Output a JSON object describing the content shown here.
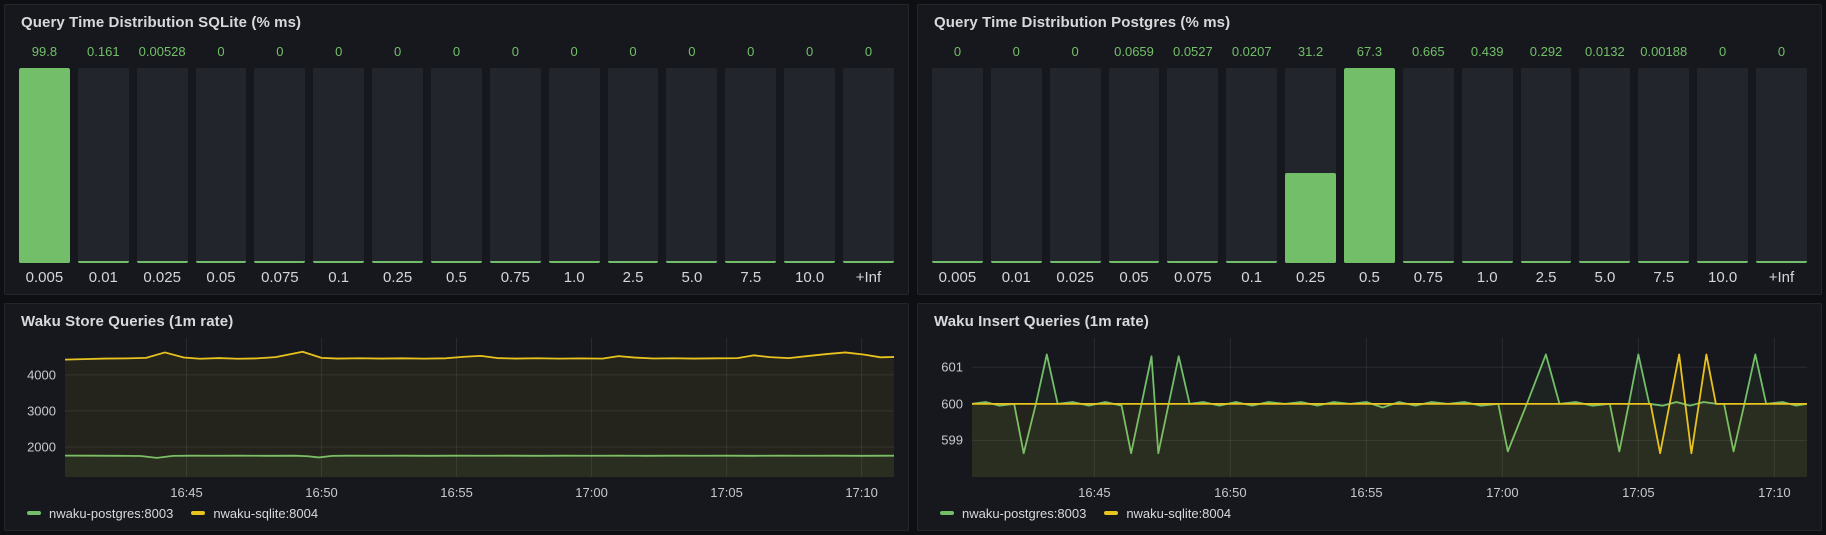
{
  "theme": {
    "green": "#73bf69",
    "yellow": "#e8c21f",
    "grid_color": "rgba(204,204,220,0.11)",
    "panel_bg": "#16181d",
    "unlit_bar": "#22252b"
  },
  "chart_data": {
    "histograms": [
      {
        "type": "bar",
        "title": "Query Time Distribution SQLite (% ms)",
        "categories": [
          "0.005",
          "0.01",
          "0.025",
          "0.05",
          "0.075",
          "0.1",
          "0.25",
          "0.5",
          "0.75",
          "1.0",
          "2.5",
          "5.0",
          "7.5",
          "10.0",
          "+Inf"
        ],
        "values": [
          99.8,
          0.161,
          0.00528,
          0,
          0,
          0,
          0,
          0,
          0,
          0,
          0,
          0,
          0,
          0,
          0
        ],
        "max": 99.8,
        "bar_color": "#73bf69"
      },
      {
        "type": "bar",
        "title": "Query Time Distribution Postgres (% ms)",
        "categories": [
          "0.005",
          "0.01",
          "0.025",
          "0.05",
          "0.075",
          "0.1",
          "0.25",
          "0.5",
          "0.75",
          "1.0",
          "2.5",
          "5.0",
          "7.5",
          "10.0",
          "+Inf"
        ],
        "values": [
          0,
          0,
          0,
          0.0659,
          0.0527,
          0.0207,
          31.2,
          67.3,
          0.665,
          0.439,
          0.292,
          0.0132,
          0.00188,
          0,
          0
        ],
        "max": 67.3,
        "bar_color": "#73bf69"
      }
    ],
    "charts": [
      {
        "type": "line",
        "title": "Waku Store Queries (1m rate)",
        "x_unit": "minutes after 16:40",
        "x_domain": [
          0.5,
          31.2
        ],
        "y_domain": [
          1170,
          5020
        ],
        "y_ticks": [
          {
            "v": 2000,
            "label": "2000"
          },
          {
            "v": 3000,
            "label": "3000"
          },
          {
            "v": 4000,
            "label": "4000"
          }
        ],
        "x_ticks": [
          {
            "t": 5,
            "label": "16:45"
          },
          {
            "t": 10,
            "label": "16:50"
          },
          {
            "t": 15,
            "label": "16:55"
          },
          {
            "t": 20,
            "label": "17:00"
          },
          {
            "t": 25,
            "label": "17:05"
          },
          {
            "t": 30,
            "label": "17:10"
          }
        ],
        "series": [
          {
            "name": "nwaku-postgres:8003",
            "color": "#73bf69",
            "fill_opacity": 0.07,
            "points": [
              [
                0.5,
                1762
              ],
              [
                1.5,
                1760
              ],
              [
                2.5,
                1757
              ],
              [
                3.3,
                1752
              ],
              [
                3.9,
                1700
              ],
              [
                4.5,
                1755
              ],
              [
                5.2,
                1760
              ],
              [
                6,
                1758
              ],
              [
                7,
                1760
              ],
              [
                8,
                1757
              ],
              [
                9,
                1760
              ],
              [
                9.5,
                1745
              ],
              [
                9.9,
                1712
              ],
              [
                10.4,
                1755
              ],
              [
                11,
                1760
              ],
              [
                12,
                1758
              ],
              [
                13,
                1760
              ],
              [
                14,
                1757
              ],
              [
                15,
                1760
              ],
              [
                16,
                1758
              ],
              [
                17,
                1760
              ],
              [
                18,
                1757
              ],
              [
                19,
                1760
              ],
              [
                20,
                1758
              ],
              [
                21,
                1760
              ],
              [
                22,
                1757
              ],
              [
                23,
                1760
              ],
              [
                24,
                1758
              ],
              [
                25,
                1760
              ],
              [
                26,
                1757
              ],
              [
                27,
                1760
              ],
              [
                28,
                1758
              ],
              [
                29,
                1760
              ],
              [
                30,
                1757
              ],
              [
                31.2,
                1760
              ]
            ]
          },
          {
            "name": "nwaku-sqlite:8004",
            "color": "#e8c21f",
            "fill_opacity": 0.07,
            "points": [
              [
                0.5,
                4420
              ],
              [
                1.2,
                4435
              ],
              [
                2,
                4450
              ],
              [
                2.8,
                4455
              ],
              [
                3.5,
                4470
              ],
              [
                4.2,
                4620
              ],
              [
                4.9,
                4480
              ],
              [
                5.5,
                4445
              ],
              [
                6.2,
                4465
              ],
              [
                6.9,
                4445
              ],
              [
                7.6,
                4455
              ],
              [
                8.3,
                4490
              ],
              [
                9.3,
                4640
              ],
              [
                10,
                4470
              ],
              [
                10.6,
                4450
              ],
              [
                11.4,
                4460
              ],
              [
                12.2,
                4450
              ],
              [
                13,
                4458
              ],
              [
                13.8,
                4448
              ],
              [
                14.6,
                4458
              ],
              [
                15.3,
                4500
              ],
              [
                15.9,
                4525
              ],
              [
                16.5,
                4465
              ],
              [
                17.2,
                4450
              ],
              [
                18,
                4460
              ],
              [
                18.8,
                4448
              ],
              [
                19.6,
                4456
              ],
              [
                20.4,
                4448
              ],
              [
                21,
                4518
              ],
              [
                21.6,
                4478
              ],
              [
                22.3,
                4452
              ],
              [
                23,
                4460
              ],
              [
                23.8,
                4450
              ],
              [
                24.6,
                4458
              ],
              [
                25.4,
                4462
              ],
              [
                26,
                4540
              ],
              [
                26.6,
                4490
              ],
              [
                27.3,
                4462
              ],
              [
                28,
                4520
              ],
              [
                28.7,
                4575
              ],
              [
                29.4,
                4620
              ],
              [
                30.1,
                4560
              ],
              [
                30.7,
                4485
              ],
              [
                31.2,
                4495
              ]
            ]
          }
        ]
      },
      {
        "type": "line",
        "title": "Waku Insert Queries (1m rate)",
        "x_unit": "minutes after 16:40",
        "x_domain": [
          0.5,
          31.2
        ],
        "y_domain": [
          598,
          601.8
        ],
        "y_ticks": [
          {
            "v": 599,
            "label": "599"
          },
          {
            "v": 600,
            "label": "600"
          },
          {
            "v": 601,
            "label": "601"
          }
        ],
        "x_ticks": [
          {
            "t": 5,
            "label": "16:45"
          },
          {
            "t": 10,
            "label": "16:50"
          },
          {
            "t": 15,
            "label": "16:55"
          },
          {
            "t": 20,
            "label": "17:00"
          },
          {
            "t": 25,
            "label": "17:05"
          },
          {
            "t": 30,
            "label": "17:10"
          }
        ],
        "series": [
          {
            "name": "nwaku-postgres:8003",
            "color": "#73bf69",
            "fill_opacity": 0.07,
            "points": [
              [
                0.5,
                600
              ],
              [
                1,
                600.05
              ],
              [
                1.5,
                599.95
              ],
              [
                2.05,
                600
              ],
              [
                2.4,
                598.65
              ],
              [
                2.85,
                600
              ],
              [
                3.25,
                601.35
              ],
              [
                3.65,
                600
              ],
              [
                4.2,
                600.05
              ],
              [
                4.8,
                599.95
              ],
              [
                5.4,
                600.05
              ],
              [
                6,
                599.95
              ],
              [
                6.35,
                598.65
              ],
              [
                7.1,
                601.3
              ],
              [
                7.35,
                598.65
              ],
              [
                8.1,
                601.3
              ],
              [
                8.5,
                600
              ],
              [
                9,
                600.05
              ],
              [
                9.6,
                599.95
              ],
              [
                10.2,
                600.05
              ],
              [
                10.8,
                599.95
              ],
              [
                11.4,
                600.05
              ],
              [
                12,
                600
              ],
              [
                12.6,
                600.05
              ],
              [
                13.2,
                599.95
              ],
              [
                13.8,
                600.05
              ],
              [
                14.4,
                600
              ],
              [
                15,
                600.05
              ],
              [
                15.6,
                599.9
              ],
              [
                16.2,
                600.05
              ],
              [
                16.8,
                599.95
              ],
              [
                17.4,
                600.05
              ],
              [
                18,
                600
              ],
              [
                18.6,
                600.05
              ],
              [
                19.2,
                599.95
              ],
              [
                19.85,
                600
              ],
              [
                20.2,
                598.7
              ],
              [
                20.9,
                600
              ],
              [
                21.6,
                601.35
              ],
              [
                22.1,
                600
              ],
              [
                22.7,
                600.05
              ],
              [
                23.3,
                599.95
              ],
              [
                23.95,
                600
              ],
              [
                24.3,
                598.7
              ],
              [
                24.65,
                600
              ],
              [
                25,
                601.35
              ],
              [
                25.4,
                600
              ],
              [
                25.9,
                599.95
              ],
              [
                26.4,
                600.05
              ],
              [
                26.9,
                599.95
              ],
              [
                27.4,
                600.05
              ],
              [
                27.9,
                600
              ],
              [
                28.15,
                600
              ],
              [
                28.5,
                598.7
              ],
              [
                28.9,
                600
              ],
              [
                29.3,
                601.35
              ],
              [
                29.7,
                600
              ],
              [
                30.3,
                600.05
              ],
              [
                30.8,
                599.95
              ],
              [
                31.2,
                600
              ]
            ]
          },
          {
            "name": "nwaku-sqlite:8004",
            "color": "#e8c21f",
            "fill_opacity": 0.07,
            "points": [
              [
                0.5,
                600
              ],
              [
                3,
                600
              ],
              [
                6,
                600
              ],
              [
                9,
                600
              ],
              [
                12,
                600
              ],
              [
                15,
                600
              ],
              [
                18,
                600
              ],
              [
                21,
                600
              ],
              [
                24,
                600
              ],
              [
                25.45,
                600
              ],
              [
                25.8,
                598.65
              ],
              [
                26.5,
                601.35
              ],
              [
                26.95,
                598.65
              ],
              [
                27.5,
                601.35
              ],
              [
                27.85,
                600
              ],
              [
                29,
                600
              ],
              [
                30,
                600
              ],
              [
                31.2,
                600
              ]
            ]
          }
        ]
      }
    ]
  }
}
